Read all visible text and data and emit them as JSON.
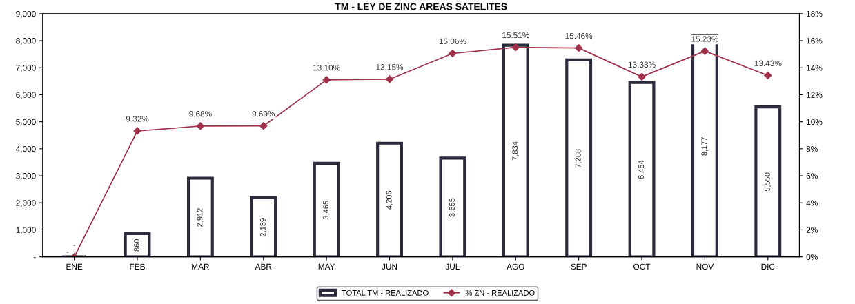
{
  "chart_data": {
    "type": "bar",
    "title": "TM - LEY DE ZINC AREAS SATELITES",
    "categories": [
      "ENE",
      "FEB",
      "MAR",
      "ABR",
      "MAY",
      "JUN",
      "JUL",
      "AGO",
      "SEP",
      "OCT",
      "NOV",
      "DIC"
    ],
    "series": [
      {
        "name": "TOTAL TM - REALIZADO",
        "color": "#2b2b3d",
        "values": [
          0,
          860,
          2912,
          2189,
          3465,
          4206,
          3655,
          7834,
          7288,
          6454,
          8177,
          5550
        ],
        "value_labels": [
          "-",
          "860",
          "2,912",
          "2,189",
          "3,465",
          "4,206",
          "3,655",
          "7,834",
          "7,288",
          "6,454",
          "8,177",
          "5,550"
        ]
      },
      {
        "name": "% ZN - REALIZADO",
        "type": "line",
        "axis": "y2",
        "color": "#a0304a",
        "marker": "diamond",
        "values": [
          0,
          9.32,
          9.68,
          9.69,
          13.1,
          13.15,
          15.06,
          15.51,
          15.46,
          13.33,
          15.23,
          13.43
        ],
        "value_labels": [
          "-",
          "9.32%",
          "9.68%",
          "9.69%",
          "13.10%",
          "13.15%",
          "15.06%",
          "15.51%",
          "15.46%",
          "13.33%",
          "15.23%",
          "13.43%"
        ]
      }
    ],
    "ylim": [
      0,
      9000
    ],
    "yticks": [
      {
        "value": 0,
        "label": "-"
      },
      {
        "value": 1000,
        "label": "1,000"
      },
      {
        "value": 2000,
        "label": "2,000"
      },
      {
        "value": 3000,
        "label": "3,000"
      },
      {
        "value": 4000,
        "label": "4,000"
      },
      {
        "value": 5000,
        "label": "5,000"
      },
      {
        "value": 6000,
        "label": "6,000"
      },
      {
        "value": 7000,
        "label": "7,000"
      },
      {
        "value": 8000,
        "label": "8,000"
      },
      {
        "value": 9000,
        "label": "9,000"
      }
    ],
    "y2lim": [
      0,
      18
    ],
    "y2ticks": [
      {
        "value": 0,
        "label": "0%"
      },
      {
        "value": 2,
        "label": "2%"
      },
      {
        "value": 4,
        "label": "4%"
      },
      {
        "value": 6,
        "label": "6%"
      },
      {
        "value": 8,
        "label": "8%"
      },
      {
        "value": 10,
        "label": "10%"
      },
      {
        "value": 12,
        "label": "12%"
      },
      {
        "value": 14,
        "label": "14%"
      },
      {
        "value": 16,
        "label": "16%"
      },
      {
        "value": 18,
        "label": "18%"
      }
    ],
    "grid": false,
    "legend": "bottom"
  }
}
